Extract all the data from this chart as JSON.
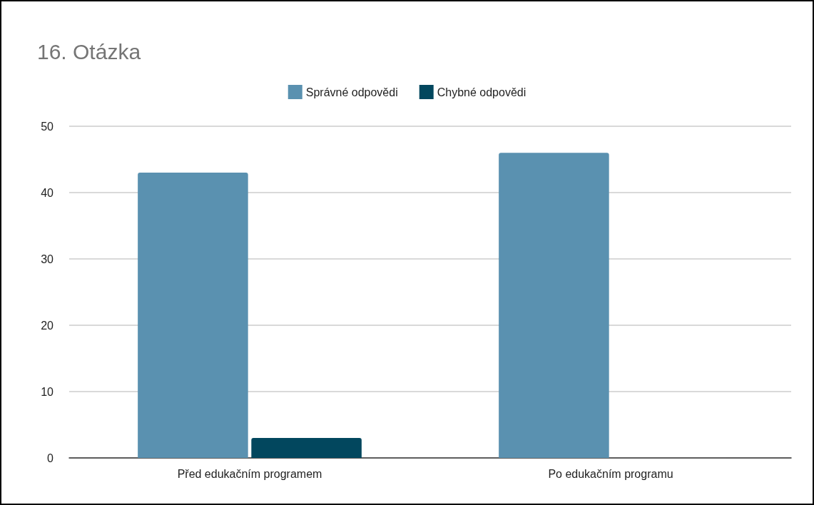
{
  "chart_data": {
    "type": "bar",
    "title": "16. Otázka",
    "categories": [
      "Před edukačním programem",
      "Po edukačním programu"
    ],
    "series": [
      {
        "name": "Správné odpovědi",
        "color": "#5a91b0",
        "values": [
          43,
          46
        ]
      },
      {
        "name": "Chybné odpovědi",
        "color": "#02475e",
        "values": [
          3,
          0
        ]
      }
    ],
    "ylim": [
      0,
      50
    ],
    "yticks": [
      0,
      10,
      20,
      30,
      40,
      50
    ],
    "grid": "y",
    "legend": "top"
  }
}
